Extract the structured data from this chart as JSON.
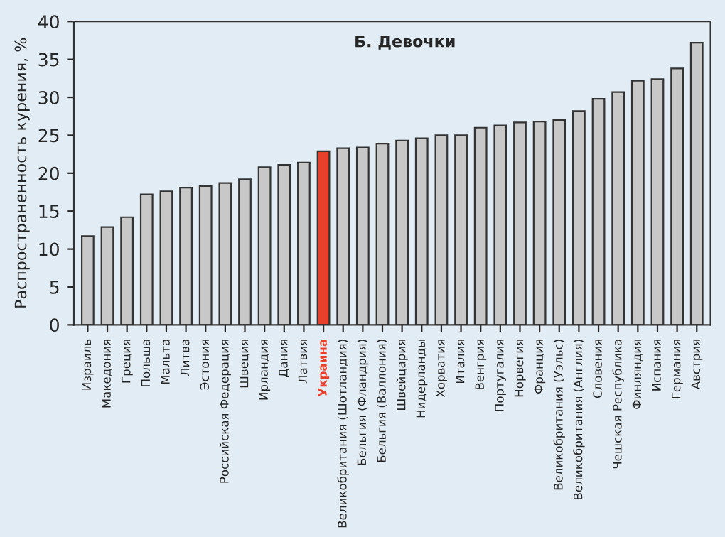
{
  "chart_data": {
    "type": "bar",
    "title": "Б. Девочки",
    "ylabel": "Распространенность курения, %",
    "categories": [
      "Израиль",
      "Македония",
      "Греция",
      "Польша",
      "Мальта",
      "Литва",
      "Эстония",
      "Российская Федерация",
      "Швеция",
      "Ирландия",
      "Дания",
      "Латвия",
      "Украина",
      "Великобритания (Шотландия)",
      "Бельгия (Фландрия)",
      "Бельгия (Валлония)",
      "Швейцария",
      "Нидерланды",
      "Хорватия",
      "Италия",
      "Венгрия",
      "Португалия",
      "Норвегия",
      "Франция",
      "Великобритания (Уэльс)",
      "Великобритания (Англия)",
      "Словения",
      "Чешская Республика",
      "Финляндия",
      "Испания",
      "Германия",
      "Австрия"
    ],
    "values": [
      11.7,
      12.9,
      14.2,
      17.2,
      17.6,
      18.1,
      18.3,
      18.7,
      19.2,
      20.8,
      21.1,
      21.4,
      22.9,
      23.3,
      23.4,
      23.9,
      24.3,
      24.6,
      25.0,
      25.0,
      26.0,
      26.3,
      26.7,
      26.8,
      27.0,
      28.2,
      29.8,
      30.7,
      32.2,
      32.4,
      33.8,
      37.2
    ],
    "colors": [
      "#c8c8c8",
      "#c8c8c8",
      "#c8c8c8",
      "#c8c8c8",
      "#c8c8c8",
      "#c8c8c8",
      "#c8c8c8",
      "#c8c8c8",
      "#c8c8c8",
      "#c8c8c8",
      "#c8c8c8",
      "#c8c8c8",
      "#e8402a",
      "#c8c8c8",
      "#c8c8c8",
      "#c8c8c8",
      "#c8c8c8",
      "#c8c8c8",
      "#c8c8c8",
      "#c8c8c8",
      "#c8c8c8",
      "#c8c8c8",
      "#c8c8c8",
      "#c8c8c8",
      "#c8c8c8",
      "#c8c8c8",
      "#c8c8c8",
      "#c8c8c8",
      "#c8c8c8",
      "#c8c8c8",
      "#c8c8c8",
      "#c8c8c8"
    ],
    "ylim": [
      0,
      40
    ],
    "yticks": [
      0,
      5,
      10,
      15,
      20,
      25,
      30,
      35,
      40
    ],
    "grid": false,
    "legend": false
  }
}
